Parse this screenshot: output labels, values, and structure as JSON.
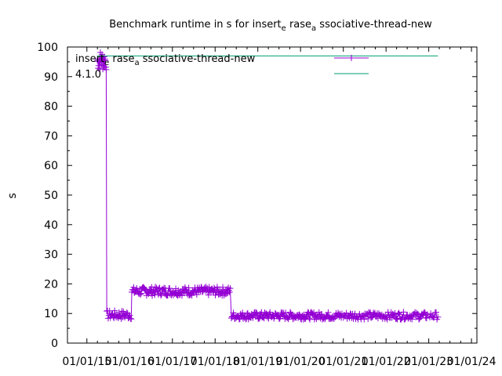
{
  "chart_data": {
    "type": "scatter",
    "title": {
      "parts": [
        {
          "text": "Benchmark runtime in s for insert",
          "sub": false
        },
        {
          "text": "e",
          "sub": true
        },
        {
          "text": " rase",
          "sub": false
        },
        {
          "text": "a",
          "sub": true
        },
        {
          "text": " ssociative-thread-new",
          "sub": false
        }
      ]
    },
    "ylabel": "s",
    "ylim": [
      0,
      100
    ],
    "y_ticks": [
      "0",
      "10",
      "20",
      "30",
      "40",
      "50",
      "60",
      "70",
      "80",
      "90",
      "100"
    ],
    "x_ticks": [
      "01/01/15",
      "01/01/16",
      "01/01/17",
      "01/01/18",
      "01/01/19",
      "01/01/20",
      "01/01/21",
      "01/01/22",
      "01/01/23",
      "01/01/24"
    ],
    "legend": {
      "placement": "top-right",
      "series_1": {
        "parts": [
          {
            "text": "insert",
            "sub": false
          },
          {
            "text": "e",
            "sub": true
          },
          {
            "text": " rase",
            "sub": false
          },
          {
            "text": "a",
            "sub": true
          },
          {
            "text": " ssociative-thread-new",
            "sub": false
          }
        ]
      },
      "series_2": "4.1.0"
    },
    "series": [
      {
        "color": "#9400d3",
        "marker": "plus",
        "segments": [
          {
            "x_start": "2015-04-01",
            "x_end": "2015-06-15",
            "y_low": 92,
            "y_high": 99,
            "count": 22
          },
          {
            "x_start": "2015-06-20",
            "x_end": "2016-01-15",
            "y_low": 8,
            "y_high": 11,
            "count": 35
          },
          {
            "x_start": "2016-01-20",
            "x_end": "2018-05-10",
            "y_low": 16,
            "y_high": 19,
            "count": 160
          },
          {
            "x_start": "2018-05-20",
            "x_end": "2020-12-20",
            "y_low": 8,
            "y_high": 10.5,
            "count": 170
          },
          {
            "x_start": "2021-01-01",
            "x_end": "2022-12-20",
            "y_low": 8,
            "y_high": 10.5,
            "count": 110
          },
          {
            "x_start": "2023-01-10",
            "x_end": "2023-03-20",
            "y_low": 8,
            "y_high": 10.5,
            "count": 10
          }
        ]
      },
      {
        "color": "#009e73",
        "marker": "line",
        "x": [
          "2015-04-01",
          "2023-03-20"
        ],
        "y": [
          97,
          97
        ]
      }
    ],
    "grid": false
  }
}
